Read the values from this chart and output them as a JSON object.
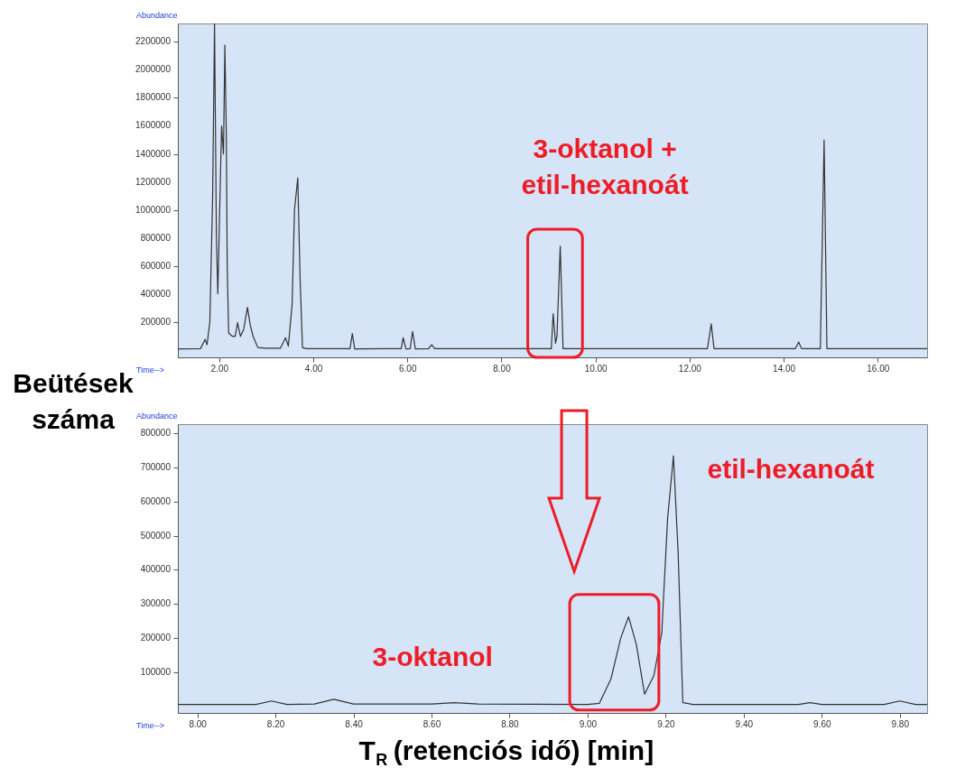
{
  "chart_data": [
    {
      "type": "line",
      "xlim": [
        1.12,
        17.05
      ],
      "ylim": [
        -50000,
        2330000
      ],
      "xticks": [
        {
          "value": 2,
          "label": "2.00"
        },
        {
          "value": 4,
          "label": "4.00"
        },
        {
          "value": 6,
          "label": "6.00"
        },
        {
          "value": 8,
          "label": "8.00"
        },
        {
          "value": 10,
          "label": "10.00"
        },
        {
          "value": 12,
          "label": "12.00"
        },
        {
          "value": 14,
          "label": "14.00"
        },
        {
          "value": 16,
          "label": "16.00"
        }
      ],
      "yticks": [
        200000,
        400000,
        600000,
        800000,
        1000000,
        1200000,
        1400000,
        1600000,
        1800000,
        2000000,
        2200000
      ],
      "series": [
        {
          "color": "#333333",
          "x": [
            1.12,
            1.6,
            1.7,
            1.74,
            1.8,
            1.86,
            1.9,
            1.94,
            1.97,
            2.01,
            2.05,
            2.09,
            2.12,
            2.15,
            2.17,
            2.2,
            2.28,
            2.34,
            2.39,
            2.45,
            2.52,
            2.6,
            2.66,
            2.72,
            2.82,
            3.0,
            3.3,
            3.41,
            3.47,
            3.55,
            3.6,
            3.67,
            3.72,
            3.77,
            3.85,
            4.5,
            4.78,
            4.83,
            4.88,
            5.5,
            5.87,
            5.91,
            5.97,
            6.06,
            6.11,
            6.17,
            6.45,
            6.52,
            6.58,
            8.9,
            9.06,
            9.1,
            9.15,
            9.18,
            9.25,
            9.31,
            9.5,
            12.38,
            12.46,
            12.52,
            14.25,
            14.32,
            14.38,
            14.78,
            14.86,
            14.92,
            17.05
          ],
          "values": [
            10000,
            12000,
            78000,
            40000,
            200000,
            1100000,
            2330000,
            800000,
            404000,
            1000000,
            1600000,
            1400000,
            2176000,
            1550000,
            600000,
            124000,
            100000,
            100000,
            197000,
            100000,
            150000,
            306000,
            180000,
            100000,
            20000,
            15000,
            15000,
            90000,
            30000,
            330000,
            1000000,
            1230000,
            500000,
            20000,
            12000,
            12000,
            12000,
            120000,
            10000,
            12000,
            12000,
            90000,
            10000,
            12000,
            135000,
            10000,
            12000,
            40000,
            12000,
            12000,
            12000,
            262000,
            50000,
            100000,
            742000,
            12000,
            12000,
            12000,
            189000,
            12000,
            12000,
            60000,
            12000,
            12000,
            1500000,
            12000,
            12000
          ]
        }
      ],
      "annotations": [
        "Abundance",
        "Time-->",
        "3-oktanol +\netil-hexanoát"
      ]
    },
    {
      "type": "line",
      "xlim": [
        7.95,
        9.87
      ],
      "ylim": [
        -20000,
        827000
      ],
      "xlabel": "T$_{R}$ (retenciós idő) [min]",
      "ylabel": "Beütések száma",
      "xticks": [
        {
          "value": 8.0,
          "label": "8.00"
        },
        {
          "value": 8.2,
          "label": "8.20"
        },
        {
          "value": 8.4,
          "label": "8.40"
        },
        {
          "value": 8.6,
          "label": "8.60"
        },
        {
          "value": 8.8,
          "label": "8.80"
        },
        {
          "value": 9.0,
          "label": "9.00"
        },
        {
          "value": 9.2,
          "label": "9.20"
        },
        {
          "value": 9.4,
          "label": "9.40"
        },
        {
          "value": 9.6,
          "label": "9.60"
        },
        {
          "value": 9.8,
          "label": "9.80"
        }
      ],
      "yticks": [
        100000,
        200000,
        300000,
        400000,
        500000,
        600000,
        700000,
        800000
      ],
      "series": [
        {
          "color": "#333333",
          "x": [
            7.95,
            8.15,
            8.19,
            8.23,
            8.3,
            8.35,
            8.4,
            8.6,
            8.66,
            8.72,
            9.0,
            9.03,
            9.06,
            9.085,
            9.105,
            9.125,
            9.146,
            9.17,
            9.19,
            9.205,
            9.22,
            9.232,
            9.244,
            9.27,
            9.54,
            9.57,
            9.6,
            9.76,
            9.8,
            9.84,
            9.87
          ],
          "values": [
            5000,
            5000,
            15000,
            5000,
            6000,
            20000,
            6000,
            6000,
            10000,
            6000,
            5000,
            8000,
            80000,
            200000,
            262000,
            180000,
            35000,
            90000,
            215000,
            550000,
            734000,
            450000,
            10000,
            5000,
            5000,
            10000,
            5000,
            5000,
            15000,
            5000,
            5000
          ]
        }
      ],
      "annotations": [
        "Abundance",
        "Time-->",
        "3-oktanol",
        {
          "text": "etil-hexanoát",
          "x": 9.22,
          "y": 734000
        }
      ]
    }
  ]
}
